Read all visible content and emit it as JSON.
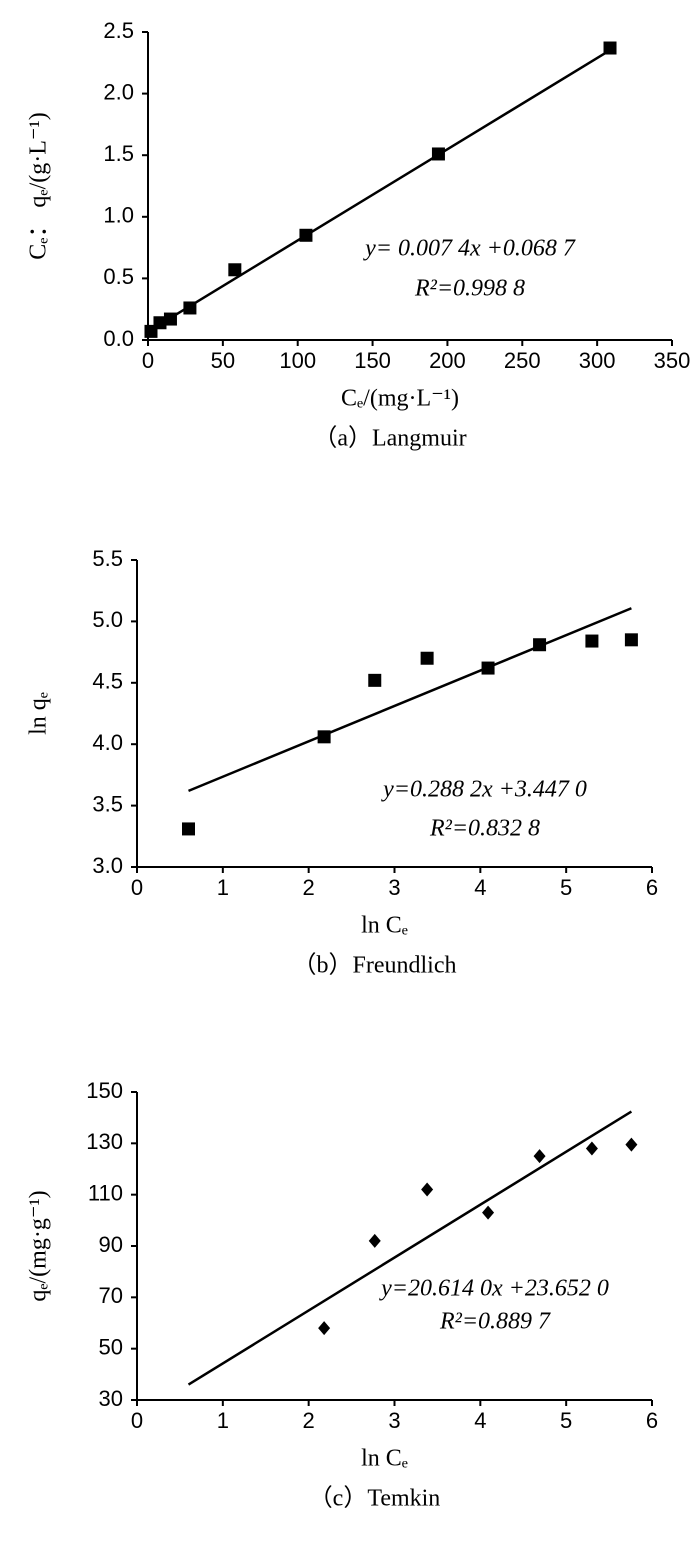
{
  "chart_data": [
    {
      "type": "scatter",
      "marker": "square",
      "color": "#000000",
      "ylabel": "Cₑ： qₑ/(g·L⁻¹)",
      "xlabel": "Cₑ/(mg·L⁻¹)",
      "caption": "（a）Langmuir",
      "x": [
        2,
        8,
        15,
        28,
        58,
        105.5,
        194,
        308.6
      ],
      "values": [
        0.07,
        0.14,
        0.17,
        0.26,
        0.57,
        0.85,
        1.51,
        2.37
      ],
      "fit": {
        "x": [
          2,
          308.6
        ],
        "values": [
          0.083,
          2.352
        ]
      },
      "annotations": [
        "y= 0.007 4x +0.068 7",
        "R²=0.998 8"
      ],
      "xlim": [
        0,
        350
      ],
      "xticks": [
        0,
        50,
        100,
        150,
        200,
        250,
        300,
        350
      ],
      "ylim": [
        0,
        2.5
      ],
      "yticks": [
        {
          "value": 0,
          "label": "0.0"
        },
        0.5,
        {
          "value": 1,
          "label": "1.0"
        },
        1.5,
        {
          "value": 2,
          "label": "2.0"
        },
        2.5
      ]
    },
    {
      "type": "scatter",
      "marker": "square",
      "color": "#000000",
      "ylabel": "ln qₑ",
      "xlabel": "ln Cₑ",
      "caption": "（b）Freundlich",
      "x": [
        0.6,
        2.18,
        2.77,
        3.38,
        4.09,
        4.69,
        5.3,
        5.76
      ],
      "values": [
        3.31,
        4.06,
        4.52,
        4.7,
        4.62,
        4.81,
        4.84,
        4.85
      ],
      "fit": {
        "x": [
          0.6,
          5.76
        ],
        "values": [
          3.62,
          5.107
        ]
      },
      "annotations": [
        "y=0.288 2x +3.447 0",
        "R²=0.832 8"
      ],
      "xlim": [
        0,
        6
      ],
      "xticks": [
        0,
        1,
        2,
        3,
        4,
        5,
        6
      ],
      "ylim": [
        3,
        5.5
      ],
      "yticks": [
        {
          "value": 3,
          "label": "3.0"
        },
        3.5,
        {
          "value": 4,
          "label": "4.0"
        },
        4.5,
        {
          "value": 5,
          "label": "5.0"
        },
        5.5
      ]
    },
    {
      "type": "scatter",
      "marker": "diamond",
      "color": "#000000",
      "ylabel": "qₑ/(mg·g⁻¹)",
      "xlabel": "ln Cₑ",
      "caption": "（c）Temkin",
      "x": [
        2.18,
        2.77,
        3.38,
        4.09,
        4.69,
        5.3,
        5.76
      ],
      "values": [
        58,
        92,
        112,
        103,
        125,
        128,
        129.5
      ],
      "fit": {
        "x": [
          0.6,
          5.76
        ],
        "values": [
          36,
          142.4
        ]
      },
      "annotations": [
        "y=20.614 0x +23.652 0",
        "R²=0.889 7"
      ],
      "xlim": [
        0,
        6
      ],
      "xticks": [
        0,
        1,
        2,
        3,
        4,
        5,
        6
      ],
      "ylim": [
        30,
        150
      ],
      "yticks": [
        30,
        50,
        70,
        90,
        110,
        130,
        150
      ]
    }
  ]
}
